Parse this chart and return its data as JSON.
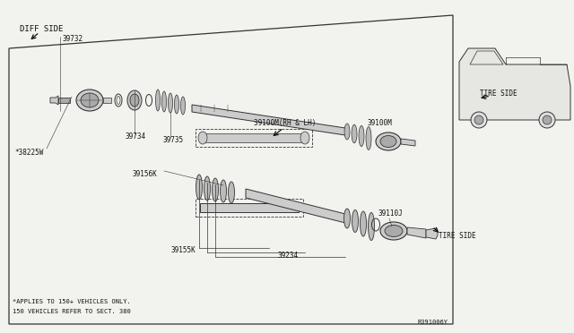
{
  "bg_color": "#f2f2ee",
  "line_color": "#333333",
  "text_color": "#111111",
  "fill_light": "#cccccc",
  "fill_dark": "#aaaaaa",
  "fill_boot": "#bbbbbb",
  "font_size_label": 6.5,
  "font_size_small": 5.5,
  "font_size_tiny": 5.0,
  "labels": {
    "diff_side": "DIFF SIDE",
    "tire_side_upper": "TIRE SIDE",
    "tire_side_lower": "TIRE SIDE",
    "part_39732": "39732",
    "part_38225w": "*38225W",
    "part_39734": "39734",
    "part_39735": "39735",
    "part_39156k": "39156K",
    "part_39100m_rhlh": "39100M(RH & LH)",
    "part_39100m": "39100M",
    "part_39110j": "39110J",
    "part_39155k": "39155K",
    "part_39234": "39234",
    "footnote1": "*APPLIES TO 150+ VEHICLES ONLY.",
    "footnote2": "150 VEHICLES REFER TO SECT. 380",
    "diagram_ref": "R391006Y"
  }
}
